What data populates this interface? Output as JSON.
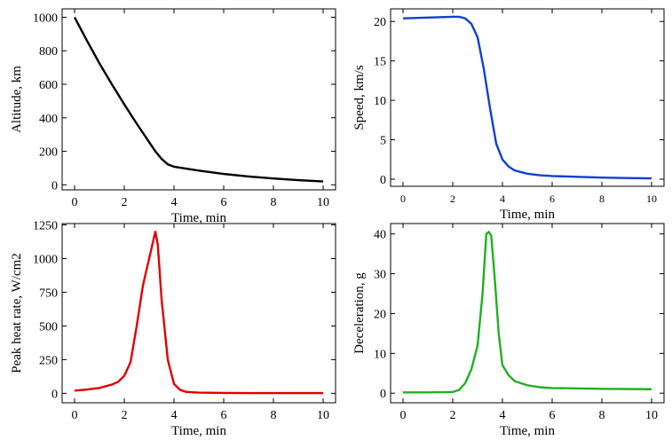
{
  "chart_data": [
    {
      "type": "line",
      "xlabel": "Time, min",
      "ylabel": "Altitude, km",
      "color": "#000000",
      "x": [
        0,
        0.5,
        1,
        1.5,
        2,
        2.5,
        3,
        3.25,
        3.5,
        3.75,
        4,
        5,
        6,
        7,
        8,
        9,
        10
      ],
      "values": [
        1000,
        860,
        725,
        600,
        480,
        365,
        255,
        200,
        155,
        122,
        108,
        85,
        65,
        50,
        38,
        28,
        20
      ],
      "xlim": [
        -0.5,
        10.5
      ],
      "ylim": [
        -30,
        1050
      ],
      "xticks": [
        0,
        2,
        4,
        6,
        8,
        10
      ],
      "yticks": [
        0,
        200,
        400,
        600,
        800,
        1000
      ]
    },
    {
      "type": "line",
      "xlabel": "Time, min",
      "ylabel": "Speed, km/s",
      "color": "#1040d0",
      "x": [
        0,
        1,
        2,
        2.25,
        2.5,
        2.75,
        3,
        3.25,
        3.5,
        3.75,
        4,
        4.25,
        4.5,
        5,
        5.5,
        6,
        7,
        8,
        9,
        10
      ],
      "values": [
        20.4,
        20.5,
        20.6,
        20.6,
        20.4,
        19.7,
        18,
        14,
        9,
        4.5,
        2.5,
        1.6,
        1.1,
        0.7,
        0.5,
        0.4,
        0.3,
        0.2,
        0.15,
        0.1
      ],
      "xlim": [
        -0.5,
        10.5
      ],
      "ylim": [
        -0.9,
        21.6
      ],
      "xticks": [
        0,
        2,
        4,
        6,
        8,
        10
      ],
      "yticks": [
        0,
        5,
        10,
        15,
        20
      ]
    },
    {
      "type": "line",
      "xlabel": "Time, min",
      "ylabel": "Peak heat rate, W/cm2",
      "color": "#e00000",
      "x": [
        0,
        0.5,
        1,
        1.5,
        1.75,
        2,
        2.25,
        2.5,
        2.75,
        3,
        3.1,
        3.25,
        3.35,
        3.5,
        3.75,
        4,
        4.25,
        4.5,
        5,
        6,
        7,
        8,
        9,
        10
      ],
      "values": [
        20,
        28,
        40,
        65,
        85,
        130,
        230,
        500,
        800,
        1000,
        1080,
        1200,
        1100,
        700,
        250,
        70,
        25,
        10,
        5,
        3,
        2,
        2,
        2,
        2
      ],
      "xlim": [
        -0.5,
        10.5
      ],
      "ylim": [
        -70,
        1260
      ],
      "xticks": [
        0,
        2,
        4,
        6,
        8,
        10
      ],
      "yticks": [
        0,
        250,
        500,
        750,
        1000,
        1250
      ]
    },
    {
      "type": "line",
      "xlabel": "Time, min",
      "ylabel": "Deceleration, g",
      "color": "#20b020",
      "x": [
        0,
        1,
        2,
        2.25,
        2.5,
        2.75,
        3,
        3.2,
        3.35,
        3.45,
        3.55,
        3.7,
        3.85,
        4,
        4.25,
        4.5,
        5,
        5.5,
        6,
        8,
        10
      ],
      "values": [
        0.2,
        0.2,
        0.3,
        0.8,
        2.5,
        6,
        12,
        25,
        40,
        40.5,
        39.5,
        28,
        15,
        7,
        4.5,
        3,
        2,
        1.5,
        1.3,
        1.1,
        1.0
      ],
      "xlim": [
        -0.5,
        10.5
      ],
      "ylim": [
        -2.4,
        42.6
      ],
      "xticks": [
        0,
        2,
        4,
        6,
        8,
        10
      ],
      "yticks": [
        0,
        10,
        20,
        30,
        40
      ]
    }
  ]
}
